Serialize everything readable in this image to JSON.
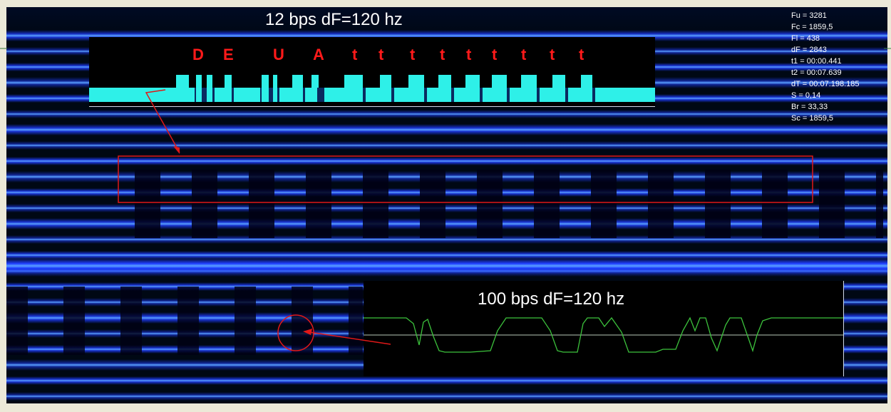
{
  "top_panel": {
    "title": "12 bps  dF=120 hz",
    "letters": [
      "D",
      "E",
      "U",
      "A",
      "t",
      "t",
      "t",
      "t",
      "t",
      "t",
      "t",
      "t",
      "t"
    ]
  },
  "bottom_panel": {
    "title": "100 bps  dF=120 hz"
  },
  "stats": [
    "Fu = 3281",
    "Fc = 1859,5",
    "Fl = 438",
    "dF = 2843",
    "t1 = 00:00.441",
    "t2 = 00:07.639",
    "dT = 00:07.198.185",
    "S = 0,14",
    "Br = 33,33",
    "Sc = 1859,5"
  ],
  "colors": {
    "spectrogram_bg": "#000814",
    "band": "#1e3cff",
    "band_bright": "#5aa0ff",
    "signal_cyan": "#2ef0e8",
    "annotation": "#e01818",
    "waveform": "#3cc23c"
  }
}
